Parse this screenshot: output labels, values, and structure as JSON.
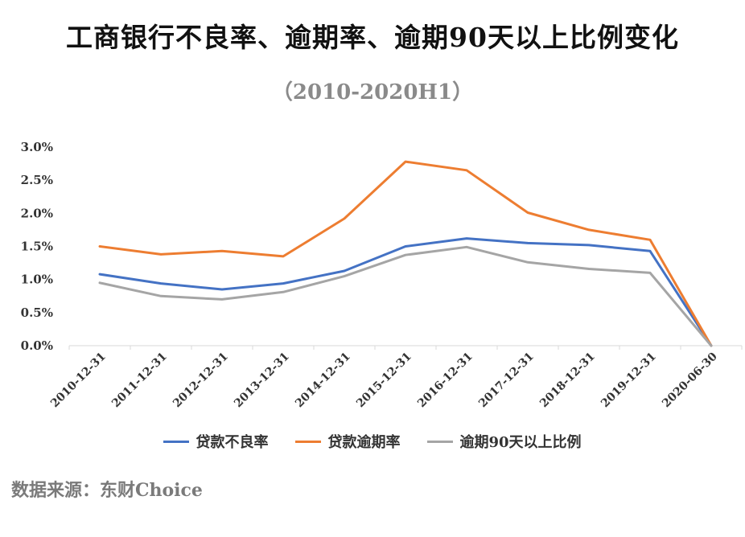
{
  "title": "工商银行不良率、逾期率、逾期90天以上比例变化",
  "subtitle": "（2010-2020H1）",
  "source": "数据来源：东财Choice",
  "colors": {
    "npl": "#4472c4",
    "overdue": "#ed7d31",
    "overdue90": "#a5a5a5",
    "axis": "#d9d9d9"
  },
  "chart_data": {
    "type": "line",
    "title": "工商银行不良率、逾期率、逾期90天以上比例变化",
    "subtitle": "（2010-2020H1）",
    "xlabel": "",
    "ylabel": "",
    "ylim": [
      0,
      3.0
    ],
    "grid": false,
    "legend_position": "bottom",
    "yticks": [
      "0.0%",
      "0.5%",
      "1.0%",
      "1.5%",
      "2.0%",
      "2.5%",
      "3.0%"
    ],
    "categories": [
      "2010-12-31",
      "2011-12-31",
      "2012-12-31",
      "2013-12-31",
      "2014-12-31",
      "2015-12-31",
      "2016-12-31",
      "2017-12-31",
      "2018-12-31",
      "2019-12-31",
      "2020-06-30"
    ],
    "series": [
      {
        "name": "贷款不良率",
        "color": "#4472c4",
        "values": [
          1.08,
          0.94,
          0.85,
          0.94,
          1.13,
          1.5,
          1.62,
          1.55,
          1.52,
          1.43,
          0.0
        ]
      },
      {
        "name": "贷款逾期率",
        "color": "#ed7d31",
        "values": [
          1.5,
          1.38,
          1.43,
          1.35,
          1.92,
          2.78,
          2.65,
          2.01,
          1.75,
          1.6,
          0.0
        ]
      },
      {
        "name": "逾期90天以上比例",
        "color": "#a5a5a5",
        "values": [
          0.95,
          0.75,
          0.7,
          0.81,
          1.05,
          1.37,
          1.49,
          1.26,
          1.16,
          1.1,
          0.0
        ]
      }
    ]
  }
}
